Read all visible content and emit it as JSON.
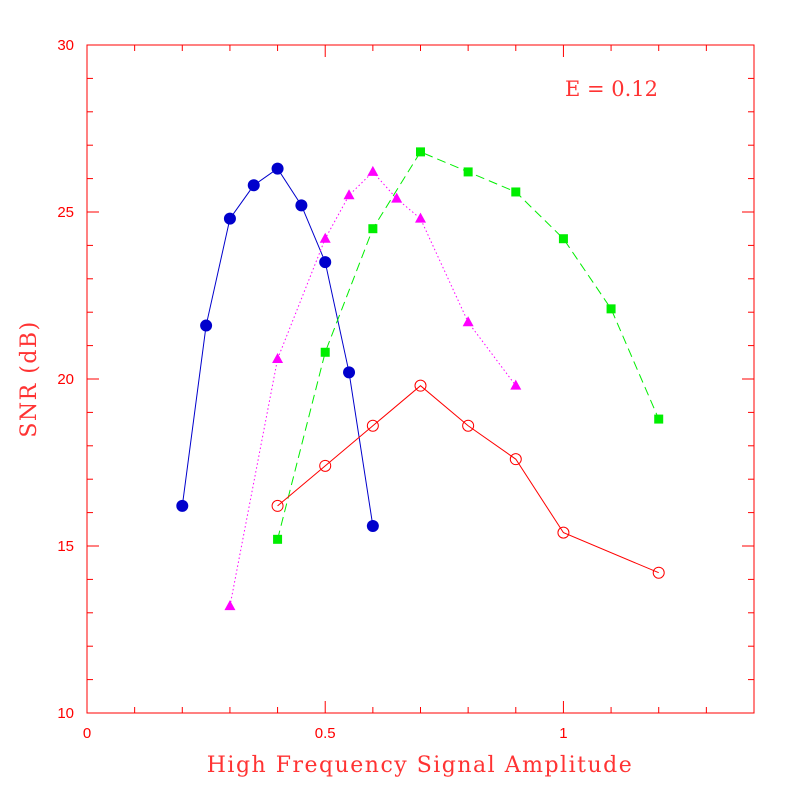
{
  "chart_data": {
    "type": "line",
    "title": "",
    "xlabel": "High Frequency Signal Amplitude",
    "ylabel": "SNR (dB)",
    "xlim": [
      0,
      1.4
    ],
    "ylim": [
      10,
      30
    ],
    "x_ticks": [
      0,
      0.5,
      1
    ],
    "x_tick_labels": [
      "0",
      "0.5",
      "1"
    ],
    "y_ticks": [
      10,
      15,
      20,
      25,
      30
    ],
    "y_tick_labels": [
      "10",
      "15",
      "20",
      "25",
      "30"
    ],
    "grid": false,
    "legend": "none",
    "annotation": "E = 0.12",
    "axis_color": "#ff0000",
    "series": [
      {
        "color": "#0000cc",
        "marker": "filled-circle",
        "line_style": "solid",
        "x": [
          0.2,
          0.25,
          0.3,
          0.35,
          0.4,
          0.45,
          0.5,
          0.55,
          0.6
        ],
        "y": [
          16.2,
          21.6,
          24.8,
          25.8,
          26.3,
          25.2,
          23.5,
          20.2,
          15.6
        ]
      },
      {
        "color": "#ff00ff",
        "marker": "filled-triangle",
        "line_style": "dotted",
        "x": [
          0.3,
          0.4,
          0.5,
          0.55,
          0.6,
          0.65,
          0.7,
          0.8,
          0.9
        ],
        "y": [
          13.2,
          20.6,
          24.2,
          25.5,
          26.2,
          25.4,
          24.8,
          21.7,
          19.8
        ]
      },
      {
        "color": "#00ee00",
        "marker": "filled-square",
        "line_style": "dashed",
        "x": [
          0.4,
          0.5,
          0.6,
          0.7,
          0.8,
          0.9,
          1.0,
          1.1,
          1.2
        ],
        "y": [
          15.2,
          20.8,
          24.5,
          26.8,
          26.2,
          25.6,
          24.2,
          22.1,
          18.8
        ]
      },
      {
        "color": "#ff0000",
        "marker": "open-circle",
        "line_style": "solid",
        "x": [
          0.4,
          0.5,
          0.6,
          0.7,
          0.8,
          0.9,
          1.0,
          1.2
        ],
        "y": [
          16.2,
          17.4,
          18.6,
          19.8,
          18.6,
          17.6,
          15.4,
          14.2
        ]
      }
    ]
  }
}
